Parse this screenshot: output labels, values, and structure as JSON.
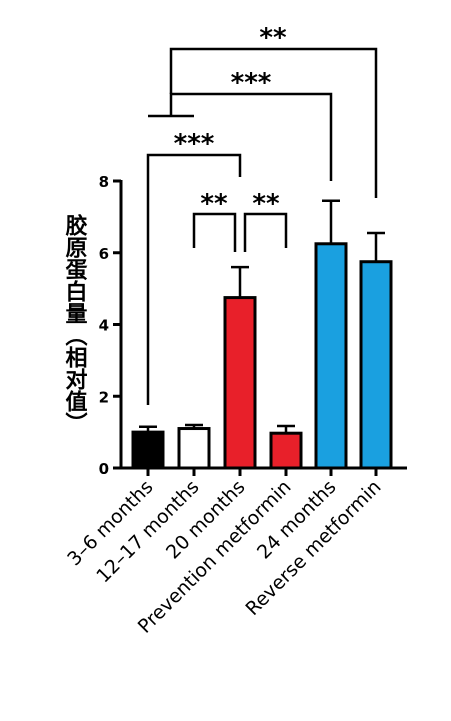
{
  "chart_data": {
    "type": "bar",
    "title": "",
    "xlabel": "",
    "ylabel": "胶原蛋白量（相对值）",
    "ylim": [
      0,
      8
    ],
    "yticks": [
      0,
      2,
      4,
      6,
      8
    ],
    "ytick_labels": [
      "0",
      "2",
      "4",
      "6",
      "8"
    ],
    "categories": [
      "3–6 months",
      "12–17 months",
      "20 months",
      "Prevention metformin",
      "24 months",
      "Reverse metformin"
    ],
    "values": [
      1.0,
      1.1,
      4.75,
      0.97,
      6.25,
      5.75
    ],
    "errors": [
      0.15,
      0.1,
      0.85,
      0.2,
      1.2,
      0.8
    ],
    "colors": [
      "#000000",
      "#ffffff",
      "#e8202a",
      "#e8202a",
      "#1aa0e0",
      "#1aa0e0"
    ],
    "grid": false,
    "significance": [
      {
        "from": 2,
        "to": 1,
        "label": "**"
      },
      {
        "from": 2,
        "to": 3,
        "label": "**"
      },
      {
        "from": 0,
        "to": 2,
        "label": "***"
      },
      {
        "from": "group_0_1",
        "to": 4,
        "label": "***"
      },
      {
        "from": "group_0_1",
        "to": 5,
        "label": "**"
      }
    ]
  }
}
